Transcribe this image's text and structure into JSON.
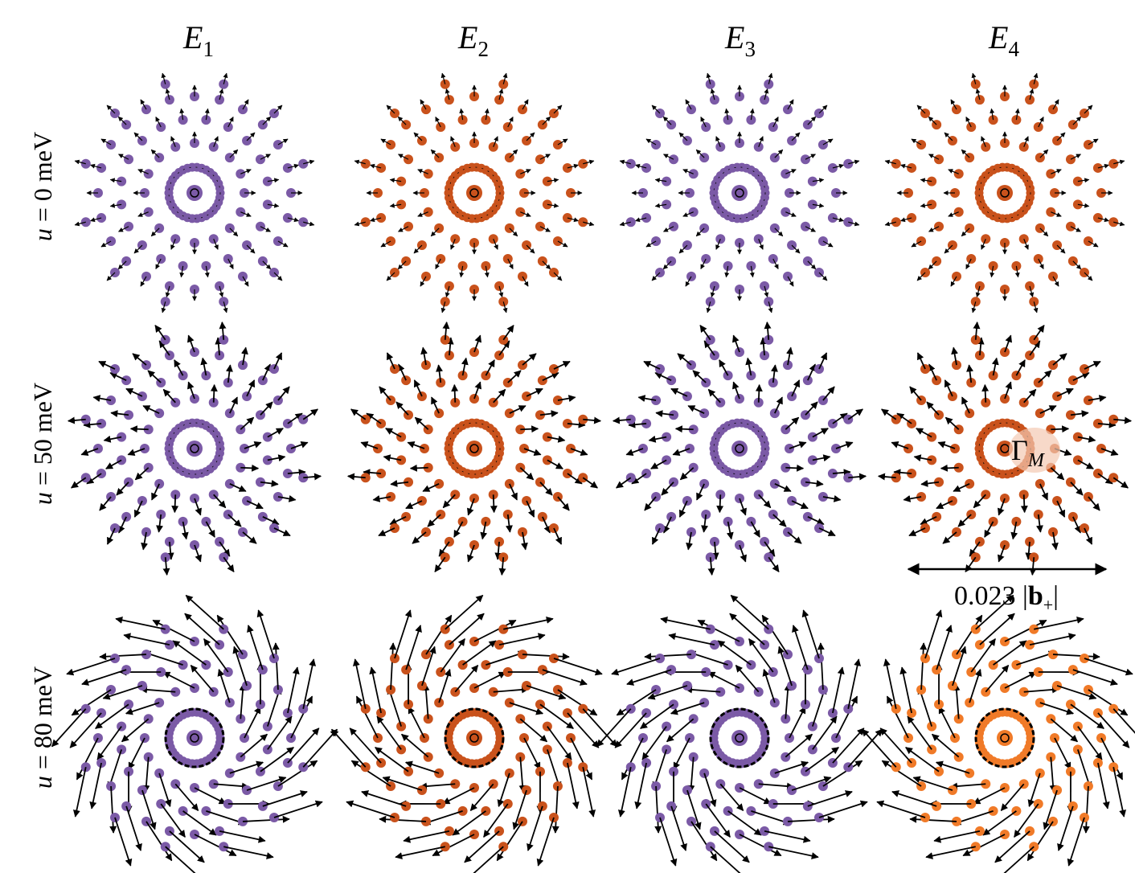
{
  "columns": [
    {
      "base": "E",
      "sub": "1"
    },
    {
      "base": "E",
      "sub": "2"
    },
    {
      "base": "E",
      "sub": "3"
    },
    {
      "base": "E",
      "sub": "4"
    }
  ],
  "rows": [
    {
      "var": "u",
      "rest": " = 0 meV"
    },
    {
      "var": "u",
      "rest": " = 50 meV"
    },
    {
      "var": "u",
      "rest": " = 80 meV"
    }
  ],
  "annotation": {
    "symbol": "Γ",
    "sub": "M"
  },
  "scale_bar": {
    "prefix": "0.023 |",
    "vector": "b",
    "sub": "+",
    "suffix": "|"
  }
}
